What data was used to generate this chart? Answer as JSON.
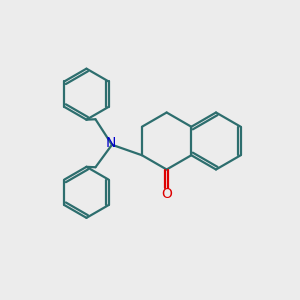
{
  "bg_color": "#ececec",
  "bond_color": "#2d6e6e",
  "N_color": "#0000cc",
  "O_color": "#dd0000",
  "lw": 1.6,
  "xlim": [
    0,
    10
  ],
  "ylim": [
    0,
    10
  ],
  "figsize": [
    3.0,
    3.0
  ],
  "dpi": 100
}
